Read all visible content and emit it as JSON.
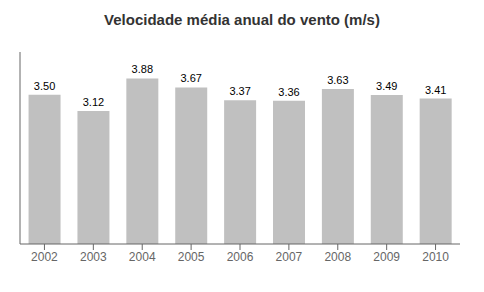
{
  "chart_data": {
    "type": "bar",
    "title": "Velocidade média anual do vento (m/s)",
    "categories": [
      "2002",
      "2003",
      "2004",
      "2005",
      "2006",
      "2007",
      "2008",
      "2009",
      "2010"
    ],
    "values": [
      3.5,
      3.12,
      3.88,
      3.67,
      3.37,
      3.36,
      3.63,
      3.49,
      3.41
    ],
    "value_labels": [
      "3.50",
      "3.12",
      "3.88",
      "3.67",
      "3.37",
      "3.36",
      "3.63",
      "3.49",
      "3.41"
    ],
    "color": "#c0c0c0",
    "ylim": [
      0,
      4.5
    ],
    "grid": false,
    "data_labels": true,
    "tick_labels": "x"
  }
}
